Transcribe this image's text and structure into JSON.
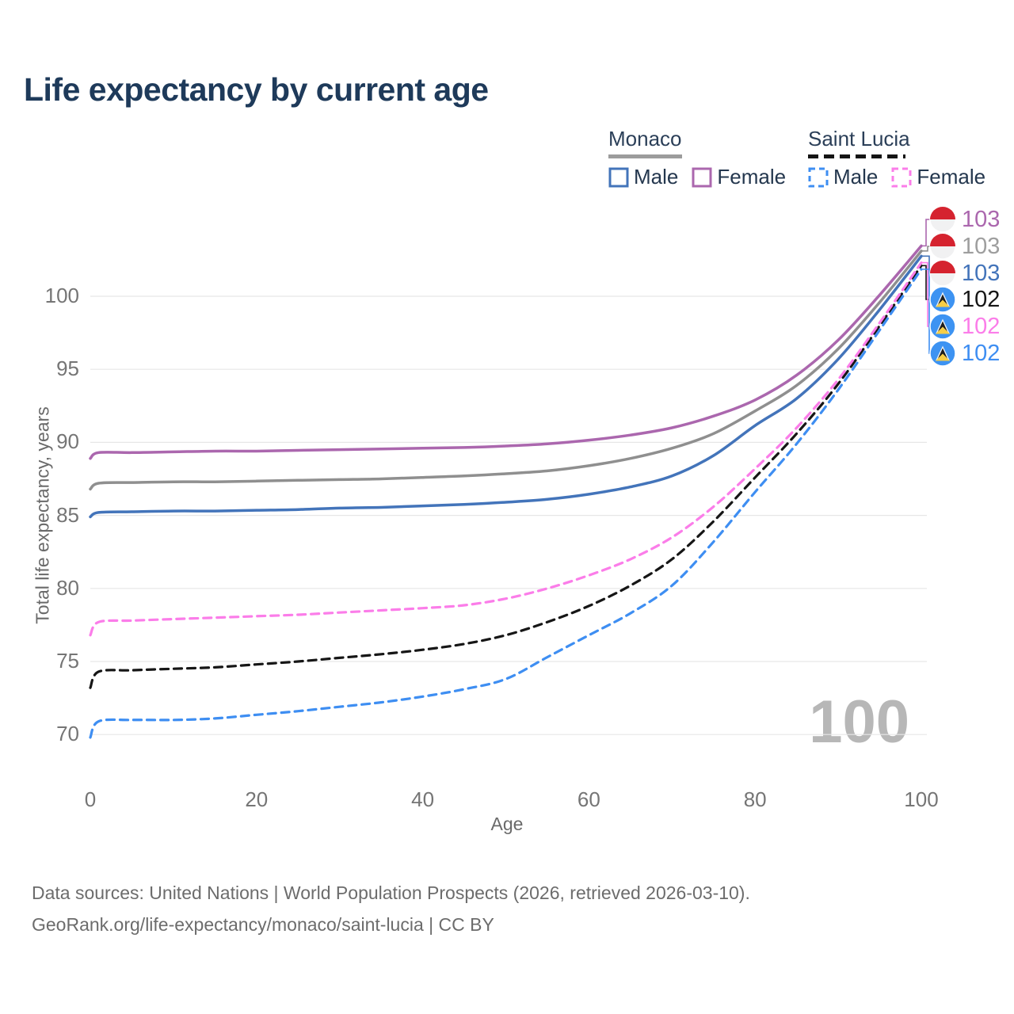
{
  "title": "Life expectancy by current age",
  "legend": {
    "groups": [
      {
        "label": "Monaco",
        "line_style": "solid",
        "underline_color": "#9c9c9c",
        "items": [
          {
            "label": "Male",
            "color": "#4374ba",
            "style": "solid"
          },
          {
            "label": "Female",
            "color": "#ab67ae",
            "style": "solid"
          }
        ]
      },
      {
        "label": "Saint Lucia",
        "line_style": "dashed",
        "underline_color": "#141414",
        "items": [
          {
            "label": "Male",
            "color": "#3e8ef2",
            "style": "dashed"
          },
          {
            "label": "Female",
            "color": "#fb7de9",
            "style": "dashed"
          }
        ]
      }
    ]
  },
  "watermark": "100",
  "y_axis": {
    "title": "Total life expectancy, years",
    "ticks": [
      100,
      95,
      90,
      85,
      80,
      75,
      70
    ]
  },
  "x_axis": {
    "title": "Age",
    "ticks": [
      0,
      20,
      40,
      60,
      80,
      100
    ]
  },
  "end_labels": [
    {
      "value": "103",
      "country": "Monaco",
      "series": "Female",
      "color": "#ab67ae",
      "flag": "monaco"
    },
    {
      "value": "103",
      "country": "Monaco",
      "series": "Total",
      "color": "#9e9e9e",
      "flag": "monaco"
    },
    {
      "value": "103",
      "country": "Monaco",
      "series": "Male",
      "color": "#4374ba",
      "flag": "monaco"
    },
    {
      "value": "102",
      "country": "Saint Lucia",
      "series": "Total",
      "color": "#161616",
      "flag": "saint-lucia"
    },
    {
      "value": "102",
      "country": "Saint Lucia",
      "series": "Female",
      "color": "#fb7de9",
      "flag": "saint-lucia"
    },
    {
      "value": "102",
      "country": "Saint Lucia",
      "series": "Male",
      "color": "#3e8ef2",
      "flag": "saint-lucia"
    }
  ],
  "footer": {
    "line1": "Data sources: United Nations | World Population Prospects (2026, retrieved 2026-03-10).",
    "line2": "GeoRank.org/life-expectancy/monaco/saint-lucia | CC BY"
  },
  "chart_data": {
    "type": "line",
    "title": "Life expectancy by current age",
    "xlabel": "Age",
    "ylabel": "Total life expectancy, years",
    "xlim": [
      0,
      100
    ],
    "ylim": [
      70,
      100
    ],
    "grid": true,
    "legend_position": "top-right",
    "x": [
      0,
      1,
      5,
      10,
      15,
      20,
      25,
      30,
      35,
      40,
      45,
      50,
      55,
      60,
      65,
      70,
      75,
      80,
      85,
      90,
      95,
      100
    ],
    "series": [
      {
        "name": "Monaco Female",
        "country": "Monaco",
        "sex": "Female",
        "style": "solid",
        "color": "#ab67ae",
        "end_value": 103,
        "values": [
          88.9,
          89.3,
          89.3,
          89.35,
          89.4,
          89.4,
          89.45,
          89.5,
          89.55,
          89.6,
          89.65,
          89.75,
          89.9,
          90.15,
          90.5,
          91.0,
          91.8,
          92.9,
          94.6,
          97.0,
          100.1,
          103.45
        ]
      },
      {
        "name": "Monaco Total",
        "country": "Monaco",
        "sex": "Total",
        "style": "solid",
        "color": "#8f8f8f",
        "end_value": 103,
        "values": [
          86.8,
          87.2,
          87.25,
          87.3,
          87.3,
          87.35,
          87.4,
          87.45,
          87.5,
          87.6,
          87.7,
          87.85,
          88.05,
          88.4,
          88.9,
          89.6,
          90.6,
          92.15,
          93.9,
          96.4,
          99.6,
          103.1
        ]
      },
      {
        "name": "Monaco Male",
        "country": "Monaco",
        "sex": "Male",
        "style": "solid",
        "color": "#4374ba",
        "end_value": 103,
        "values": [
          84.9,
          85.2,
          85.25,
          85.3,
          85.3,
          85.35,
          85.4,
          85.5,
          85.55,
          85.65,
          85.75,
          85.9,
          86.1,
          86.45,
          86.95,
          87.7,
          89.1,
          91.15,
          93.0,
          95.7,
          99.1,
          102.75
        ]
      },
      {
        "name": "Saint Lucia Total",
        "country": "Saint Lucia",
        "sex": "Total",
        "style": "dashed",
        "color": "#161616",
        "end_value": 102,
        "values": [
          73.2,
          74.3,
          74.4,
          74.5,
          74.6,
          74.8,
          75.0,
          75.25,
          75.5,
          75.8,
          76.2,
          76.8,
          77.7,
          78.8,
          80.2,
          82.0,
          84.6,
          87.6,
          90.6,
          94.0,
          98.0,
          102.1
        ]
      },
      {
        "name": "Saint Lucia Female",
        "country": "Saint Lucia",
        "sex": "Female",
        "style": "dashed",
        "color": "#fb7de9",
        "end_value": 102,
        "values": [
          76.8,
          77.7,
          77.8,
          77.9,
          78.0,
          78.1,
          78.2,
          78.35,
          78.5,
          78.65,
          78.85,
          79.3,
          80.0,
          80.9,
          82.0,
          83.5,
          85.6,
          88.2,
          91.0,
          94.3,
          98.2,
          102.3
        ]
      },
      {
        "name": "Saint Lucia Male",
        "country": "Saint Lucia",
        "sex": "Male",
        "style": "dashed",
        "color": "#3e8ef2",
        "end_value": 102,
        "values": [
          69.8,
          70.9,
          71.0,
          71.0,
          71.1,
          71.35,
          71.6,
          71.9,
          72.2,
          72.6,
          73.1,
          73.8,
          75.3,
          76.8,
          78.3,
          80.2,
          83.2,
          86.6,
          89.9,
          93.6,
          97.7,
          101.85
        ]
      }
    ]
  }
}
